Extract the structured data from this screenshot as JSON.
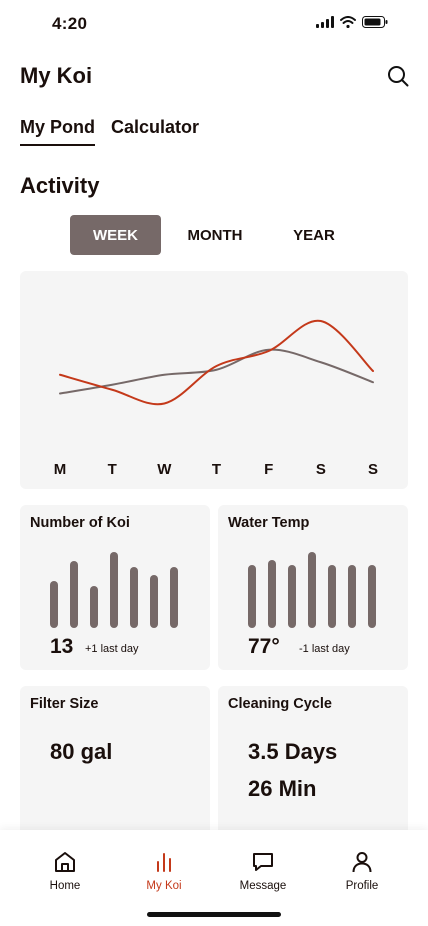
{
  "status": {
    "time": "4:20",
    "icons": [
      "signal-icon",
      "wifi-icon",
      "battery-icon"
    ]
  },
  "header": {
    "title": "My Koi",
    "search_icon": "search-icon"
  },
  "tabs": [
    {
      "label": "My Pond",
      "active": true
    },
    {
      "label": "Calculator",
      "active": false
    }
  ],
  "activity": {
    "title": "Activity",
    "periods": [
      {
        "label": "WEEK",
        "active": true
      },
      {
        "label": "MONTH",
        "active": false
      },
      {
        "label": "YEAR",
        "active": false
      }
    ]
  },
  "chart_data": {
    "type": "line",
    "title": "",
    "xlabel": "",
    "ylabel": "",
    "grid": false,
    "categories": [
      "M",
      "T",
      "W",
      "T",
      "F",
      "S",
      "S"
    ],
    "ylim": [
      0,
      100
    ],
    "series": [
      {
        "name": "red",
        "color": "#c4391a",
        "values": [
          45,
          33,
          22,
          52,
          64,
          88,
          48
        ]
      },
      {
        "name": "gray",
        "color": "#766968",
        "values": [
          30,
          37,
          45,
          49,
          65,
          55,
          39
        ]
      }
    ]
  },
  "cards": {
    "koi": {
      "title": "Number of Koi",
      "value": "13",
      "delta": "+1 last day",
      "bars": [
        0.62,
        0.88,
        0.55,
        1.0,
        0.8,
        0.7,
        0.8
      ]
    },
    "temp": {
      "title": "Water Temp",
      "value": "77°",
      "delta": "-1 last day",
      "bars": [
        0.83,
        0.9,
        0.83,
        1.0,
        0.83,
        0.83,
        0.83
      ]
    },
    "filter": {
      "title": "Filter Size",
      "value": "80 gal"
    },
    "cleaning": {
      "title": "Cleaning Cycle",
      "line1": "3.5 Days",
      "line2": "26 Min"
    }
  },
  "nav": [
    {
      "label": "Home",
      "icon": "home-icon",
      "active": false
    },
    {
      "label": "My Koi",
      "icon": "bar-chart-icon",
      "active": true
    },
    {
      "label": "Message",
      "icon": "message-icon",
      "active": false
    },
    {
      "label": "Profile",
      "icon": "profile-icon",
      "active": false
    }
  ],
  "colors": {
    "accent": "#c4391a",
    "neutral": "#766968",
    "card_bg": "#f5f5f5",
    "text": "#1a0f0c"
  }
}
